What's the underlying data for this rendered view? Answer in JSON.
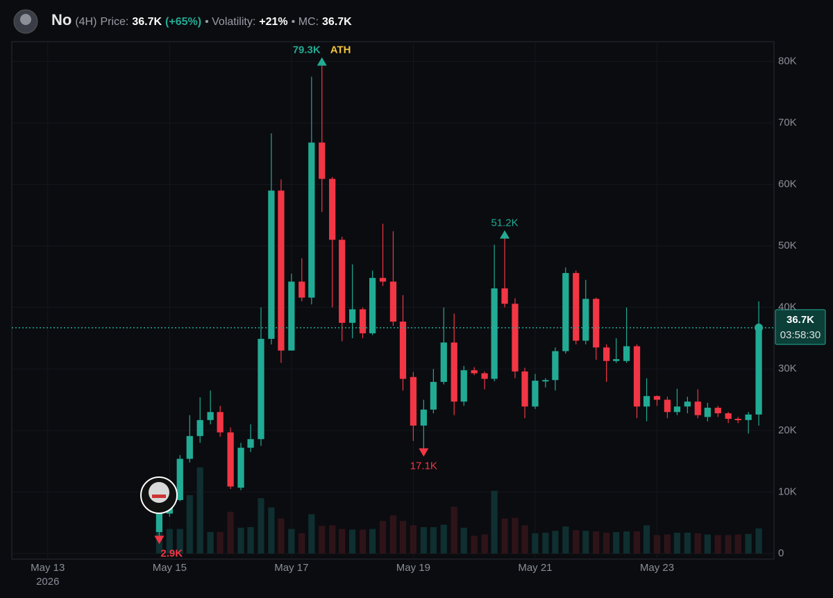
{
  "header": {
    "symbol": "No",
    "interval": "(4H)",
    "price_label": "Price:",
    "price": "36.7K",
    "change": "(+65%)",
    "volatility_label": "• Volatility:",
    "volatility": "+21%",
    "mc_label": "• MC:",
    "mc": "36.7K"
  },
  "chart_data": {
    "type": "candlestick",
    "x": [
      14.83,
      15,
      15.17,
      15.33,
      15.5,
      15.67,
      15.83,
      16,
      16.17,
      16.33,
      16.5,
      16.67,
      16.83,
      17,
      17.17,
      17.33,
      17.5,
      17.67,
      17.83,
      18,
      18.17,
      18.33,
      18.5,
      18.67,
      18.83,
      19,
      19.17,
      19.33,
      19.5,
      19.67,
      19.83,
      20,
      20.17,
      20.33,
      20.5,
      20.67,
      20.83,
      21,
      21.17,
      21.33,
      21.5,
      21.67,
      21.83,
      22,
      22.17,
      22.33,
      22.5,
      22.67,
      22.83,
      23,
      23.17,
      23.33,
      23.5,
      23.67,
      23.83,
      24,
      24.17,
      24.33,
      24.5,
      24.67
    ],
    "open": [
      3.5,
      6.5,
      8.7,
      15.4,
      19.1,
      21.7,
      23,
      19.7,
      10.7,
      17.2,
      18.6,
      34.9,
      59,
      33,
      44.2,
      41.6,
      66.8,
      60.9,
      51,
      37.5,
      39.7,
      35.8,
      44.8,
      44.2,
      37.7,
      28.7,
      20.8,
      23.4,
      27.9,
      34.3,
      24.7,
      29.8,
      29.3,
      28.4,
      43.1,
      40.6,
      29.6,
      23.9,
      28.1,
      28.2,
      32.9,
      45.6,
      34.6,
      41.4,
      33.5,
      31.3,
      31.3,
      33.7,
      23.9,
      25.6,
      25,
      23,
      23.9,
      24.7,
      22.2,
      23.7,
      22.8,
      21.9,
      21.7,
      22.6
    ],
    "high": [
      7,
      9,
      16,
      22.5,
      25.4,
      26.5,
      24,
      20.5,
      18,
      21,
      40,
      68.3,
      60.8,
      45.5,
      48,
      77.5,
      79.3,
      61.2,
      51.5,
      47,
      40,
      46,
      53.6,
      52.4,
      42,
      29.5,
      25,
      30,
      40,
      39,
      30.5,
      30.3,
      29.6,
      50.2,
      51.2,
      41.5,
      30.2,
      29.2,
      28.5,
      33.5,
      46.5,
      46,
      44.5,
      41.6,
      34,
      35,
      40,
      34,
      28.5,
      25.7,
      25.5,
      26.8,
      25.5,
      26.7,
      24.5,
      24,
      23,
      22.2,
      23,
      41
    ],
    "low": [
      2.9,
      6,
      8.5,
      14.8,
      18,
      21,
      19,
      10.5,
      10.3,
      16.5,
      17.5,
      34,
      31,
      33,
      41,
      40.5,
      55.5,
      40,
      34.5,
      35,
      35,
      35.5,
      43.5,
      37,
      26.5,
      18.3,
      17.1,
      22.8,
      27.5,
      22.5,
      24,
      29,
      26.7,
      28,
      40,
      28.5,
      22,
      23.5,
      27,
      26.5,
      32.5,
      34,
      34,
      31.5,
      27.9,
      31,
      31,
      22,
      21.5,
      24,
      22,
      22.5,
      22.8,
      22,
      21.5,
      22.2,
      21.2,
      21.2,
      19.5,
      20.8
    ],
    "close": [
      6.5,
      8.7,
      15.4,
      19.1,
      21.7,
      23,
      19.7,
      10.9,
      17.2,
      18.6,
      34.9,
      59,
      33,
      44.2,
      41.6,
      66.8,
      60.9,
      51,
      37.5,
      39.7,
      35.8,
      44.8,
      44.2,
      37.7,
      28.4,
      20.8,
      23.4,
      27.9,
      34.3,
      24.7,
      29.8,
      29.3,
      28.4,
      43.1,
      40.6,
      29.6,
      23.9,
      28.1,
      28.2,
      32.9,
      45.6,
      34.6,
      41.4,
      33.5,
      31.3,
      31.6,
      33.7,
      23.9,
      25.6,
      25,
      23,
      23.9,
      24.7,
      22.5,
      23.7,
      22.8,
      21.9,
      21.7,
      22.6,
      36.7
    ],
    "volume": [
      5,
      4,
      4,
      9.5,
      14,
      3.5,
      3.5,
      6.8,
      4.2,
      4.3,
      9,
      7.5,
      5.7,
      4,
      3.3,
      6.4,
      4.5,
      4.6,
      4,
      3.9,
      3.9,
      4,
      5.3,
      6.2,
      5.3,
      4.6,
      4.3,
      4.3,
      4.7,
      7.6,
      4.2,
      2.9,
      3.1,
      10.2,
      5.7,
      5.8,
      4.6,
      3.3,
      3.4,
      3.7,
      4.4,
      3.8,
      3.7,
      3.6,
      3.4,
      3.5,
      3.6,
      3.6,
      4.6,
      3,
      3.1,
      3.4,
      3.4,
      3.3,
      3.1,
      3,
      3,
      3.1,
      3.2,
      4.1
    ],
    "up_color": "#22ab94",
    "down_color": "#f23645",
    "up_volume_color": "#0f2f30",
    "down_volume_color": "#2e1419",
    "xlim": [
      12.41,
      24.92
    ],
    "xticks": [
      {
        "value": 13,
        "label": "May 13"
      },
      {
        "value": 15,
        "label": "May 15"
      },
      {
        "value": 17,
        "label": "May 17"
      },
      {
        "value": 19,
        "label": "May 19"
      },
      {
        "value": 21,
        "label": "May 21"
      },
      {
        "value": 23,
        "label": "May 23"
      }
    ],
    "year_label": "2026",
    "ylim": [
      -0.9,
      83.2
    ],
    "yticks": [
      0,
      {
        "value": 10,
        "label": "10K"
      },
      {
        "value": 20,
        "label": "20K"
      },
      {
        "value": 30,
        "label": "30K"
      },
      {
        "value": 40,
        "label": "40K"
      },
      {
        "value": 50,
        "label": "50K"
      },
      {
        "value": 60,
        "label": "60K"
      },
      {
        "value": 70,
        "label": "70K"
      },
      {
        "value": 80,
        "label": "80K"
      }
    ],
    "grid": true,
    "current_price": {
      "value": 36.7,
      "label": "36.7K",
      "countdown": "03:58:30"
    },
    "annotations": [
      {
        "x": 17.5,
        "value": 79.3,
        "label": "79.3K",
        "tag": "ATH",
        "position": "above",
        "color": "#22ab94"
      },
      {
        "x": 20.5,
        "value": 51.2,
        "label": "51.2K",
        "position": "above",
        "color": "#22ab94"
      },
      {
        "x": 19.17,
        "value": 17.1,
        "label": "17.1K",
        "position": "below",
        "color": "#f23645"
      },
      {
        "x": 14.83,
        "value": 2.9,
        "label": "2.9K",
        "position": "below",
        "color": "#f23645"
      }
    ]
  }
}
